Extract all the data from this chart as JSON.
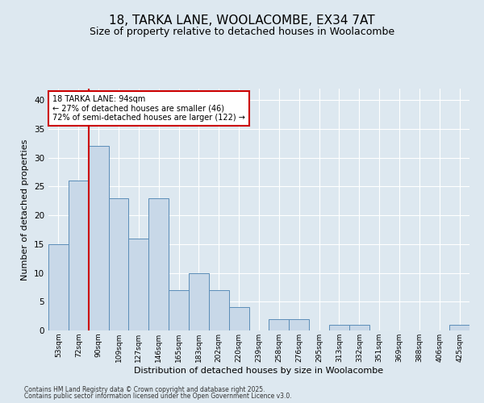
{
  "title_line1": "18, TARKA LANE, WOOLACOMBE, EX34 7AT",
  "title_line2": "Size of property relative to detached houses in Woolacombe",
  "xlabel": "Distribution of detached houses by size in Woolacombe",
  "ylabel": "Number of detached properties",
  "categories": [
    "53sqm",
    "72sqm",
    "90sqm",
    "109sqm",
    "127sqm",
    "146sqm",
    "165sqm",
    "183sqm",
    "202sqm",
    "220sqm",
    "239sqm",
    "258sqm",
    "276sqm",
    "295sqm",
    "313sqm",
    "332sqm",
    "351sqm",
    "369sqm",
    "388sqm",
    "406sqm",
    "425sqm"
  ],
  "values": [
    15,
    26,
    32,
    23,
    16,
    23,
    7,
    10,
    7,
    4,
    0,
    2,
    2,
    0,
    1,
    1,
    0,
    0,
    0,
    0,
    1
  ],
  "bar_color": "#c8d8e8",
  "bar_edge_color": "#5b8db8",
  "ylim": [
    0,
    42
  ],
  "yticks": [
    0,
    5,
    10,
    15,
    20,
    25,
    30,
    35,
    40
  ],
  "red_line_index": 2,
  "annotation_title": "18 TARKA LANE: 94sqm",
  "annotation_line1": "← 27% of detached houses are smaller (46)",
  "annotation_line2": "72% of semi-detached houses are larger (122) →",
  "annotation_box_color": "#ffffff",
  "annotation_box_edge": "#cc0000",
  "red_line_color": "#cc0000",
  "background_color": "#dde8f0",
  "grid_color": "#ffffff",
  "footnote1": "Contains HM Land Registry data © Crown copyright and database right 2025.",
  "footnote2": "Contains public sector information licensed under the Open Government Licence v3.0."
}
